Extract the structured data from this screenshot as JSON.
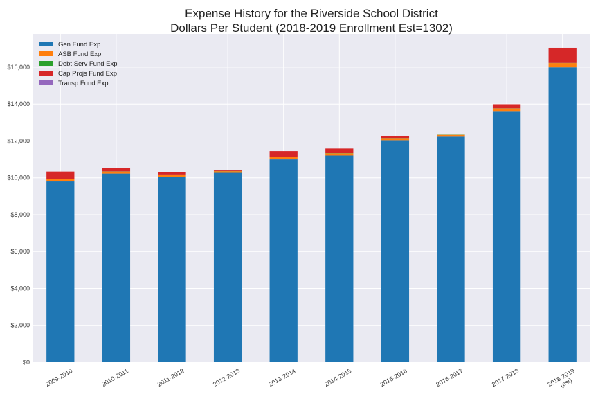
{
  "chart_data": {
    "type": "bar",
    "stacked": true,
    "title": "Expense History for the Riverside School District",
    "subtitle": "Dollars Per Student (2018-2019 Enrollment Est=1302)",
    "xlabel": "",
    "ylabel": "",
    "ylim": [
      0,
      17800
    ],
    "yticks": [
      0,
      2000,
      4000,
      6000,
      8000,
      10000,
      12000,
      14000,
      16000
    ],
    "ytick_labels": [
      "$0",
      "$2,000",
      "$4,000",
      "$6,000",
      "$8,000",
      "$10,000",
      "$12,000",
      "$14,000",
      "$16,000"
    ],
    "grid": true,
    "legend_position": "top-left",
    "background": "#eaeaf2",
    "categories": [
      "2009-2010",
      "2010-2011",
      "2011-2012",
      "2012-2013",
      "2013-2014",
      "2014-2015",
      "2015-2016",
      "2016-2017",
      "2017-2018",
      "2018-2019\n(est)"
    ],
    "series": [
      {
        "name": "Gen Fund Exp",
        "color": "#1f77b4",
        "values": [
          9800,
          10230,
          10060,
          10270,
          11000,
          11210,
          12040,
          12230,
          13620,
          15990
        ]
      },
      {
        "name": "ASB Fund Exp",
        "color": "#ff7f0e",
        "values": [
          130,
          110,
          110,
          90,
          140,
          120,
          110,
          100,
          140,
          230
        ]
      },
      {
        "name": "Debt Serv Fund Exp",
        "color": "#2ca02c",
        "values": [
          10,
          10,
          10,
          10,
          10,
          10,
          10,
          10,
          10,
          10
        ]
      },
      {
        "name": "Cap Projs Fund Exp",
        "color": "#d62728",
        "values": [
          400,
          170,
          130,
          40,
          300,
          250,
          120,
          0,
          220,
          820
        ]
      },
      {
        "name": "Transp Fund Exp",
        "color": "#9467bd",
        "values": [
          0,
          0,
          0,
          0,
          0,
          0,
          0,
          0,
          0,
          0
        ]
      }
    ]
  }
}
